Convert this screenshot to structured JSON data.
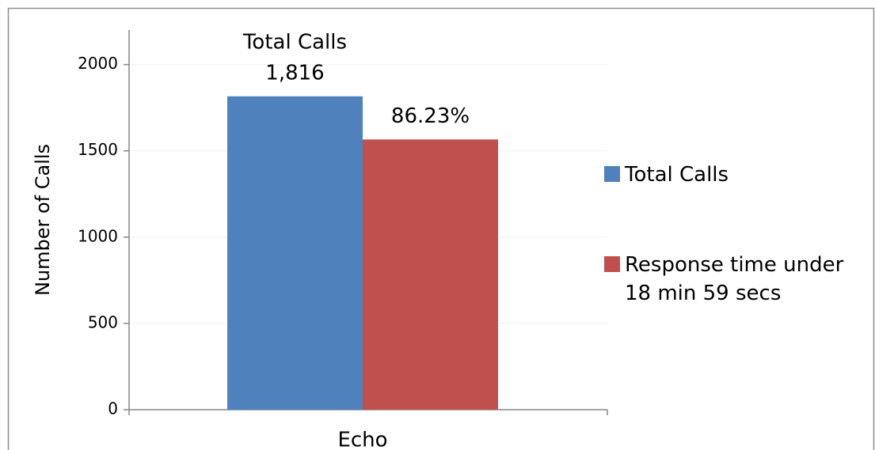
{
  "chart_data": {
    "type": "bar",
    "categories": [
      "Echo"
    ],
    "series": [
      {
        "name": "Total Calls",
        "color": "#4f81bd",
        "values": [
          1816
        ],
        "value_labels": [
          "1,816"
        ]
      },
      {
        "name": "Response time under 18 min 59 secs",
        "color": "#c0504d",
        "values": [
          1566
        ]
      }
    ],
    "annotations": [
      "86.23%"
    ],
    "y_label": "Number of Calls",
    "ylim": [
      0,
      2200
    ],
    "yticks": [
      0,
      500,
      1000,
      1500,
      2000
    ],
    "grid": true,
    "legend": "right"
  }
}
